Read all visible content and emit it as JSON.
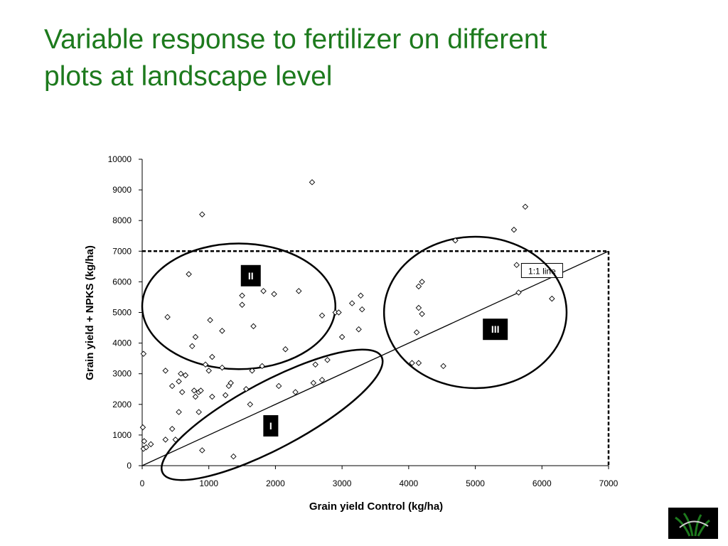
{
  "title_lines": [
    "Variable response to fertilizer on different",
    "plots at landscape level"
  ],
  "chart_data": {
    "type": "scatter",
    "xlabel": "Grain yield Control (kg/ha)",
    "ylabel": "Grain yield + NPKS (kg/ha)",
    "xlim": [
      0,
      7000
    ],
    "ylim": [
      0,
      10000
    ],
    "x_ticks": [
      0,
      1000,
      2000,
      3000,
      4000,
      5000,
      6000,
      7000
    ],
    "y_ticks": [
      0,
      1000,
      2000,
      3000,
      4000,
      5000,
      6000,
      7000,
      8000,
      9000,
      10000
    ],
    "grid": false,
    "legend": "none",
    "marker": "diamond",
    "reference_line": {
      "label": "1:1 line",
      "from": [
        0,
        0
      ],
      "to": [
        7000,
        7000
      ]
    },
    "threshold_box": {
      "x": 7000,
      "y": 7000,
      "style": "dashed"
    },
    "groups": [
      {
        "label": "I",
        "center": [
          1950,
          1660
        ],
        "rx": 2000,
        "ry": 1250,
        "rotation_deg": 28
      },
      {
        "label": "II",
        "center": [
          1450,
          5200
        ],
        "rx": 1450,
        "ry": 2050,
        "rotation_deg": 0
      },
      {
        "label": "III",
        "center": [
          5000,
          5000
        ],
        "rx": 1370,
        "ry": 2470,
        "rotation_deg": 0
      }
    ],
    "points": [
      [
        20,
        3650
      ],
      [
        10,
        1250
      ],
      [
        20,
        550
      ],
      [
        30,
        800
      ],
      [
        60,
        600
      ],
      [
        130,
        700
      ],
      [
        350,
        850
      ],
      [
        350,
        3100
      ],
      [
        380,
        4850
      ],
      [
        450,
        2600
      ],
      [
        450,
        1200
      ],
      [
        500,
        850
      ],
      [
        550,
        2750
      ],
      [
        550,
        1750
      ],
      [
        580,
        3000
      ],
      [
        600,
        2400
      ],
      [
        650,
        2950
      ],
      [
        700,
        6250
      ],
      [
        750,
        3900
      ],
      [
        780,
        2450
      ],
      [
        800,
        4200
      ],
      [
        800,
        2250
      ],
      [
        850,
        1750
      ],
      [
        850,
        2400
      ],
      [
        880,
        2450
      ],
      [
        900,
        8200
      ],
      [
        900,
        500
      ],
      [
        950,
        3300
      ],
      [
        1000,
        3100
      ],
      [
        1020,
        4750
      ],
      [
        1050,
        3550
      ],
      [
        1050,
        2250
      ],
      [
        1200,
        4400
      ],
      [
        1200,
        3200
      ],
      [
        1250,
        2300
      ],
      [
        1300,
        2600
      ],
      [
        1330,
        2700
      ],
      [
        1370,
        300
      ],
      [
        1500,
        5550
      ],
      [
        1500,
        5250
      ],
      [
        1560,
        2500
      ],
      [
        1620,
        2000
      ],
      [
        1650,
        3100
      ],
      [
        1670,
        4550
      ],
      [
        1800,
        3250
      ],
      [
        1820,
        5700
      ],
      [
        1980,
        5600
      ],
      [
        2050,
        2600
      ],
      [
        2150,
        3800
      ],
      [
        2300,
        2400
      ],
      [
        2350,
        5700
      ],
      [
        2550,
        9250
      ],
      [
        2570,
        2700
      ],
      [
        2600,
        3300
      ],
      [
        2700,
        4900
      ],
      [
        2700,
        2800
      ],
      [
        2780,
        3450
      ],
      [
        2900,
        5000
      ],
      [
        2950,
        5000
      ],
      [
        3000,
        4200
      ],
      [
        3150,
        5300
      ],
      [
        3250,
        4450
      ],
      [
        3280,
        5550
      ],
      [
        3300,
        5100
      ],
      [
        4050,
        3350
      ],
      [
        4120,
        4350
      ],
      [
        4150,
        5850
      ],
      [
        4150,
        5150
      ],
      [
        4150,
        3350
      ],
      [
        4200,
        6000
      ],
      [
        4200,
        4950
      ],
      [
        4520,
        3250
      ],
      [
        4700,
        7350
      ],
      [
        5580,
        7700
      ],
      [
        5620,
        6550
      ],
      [
        5650,
        5650
      ],
      [
        5750,
        8450
      ],
      [
        6150,
        5450
      ]
    ]
  }
}
